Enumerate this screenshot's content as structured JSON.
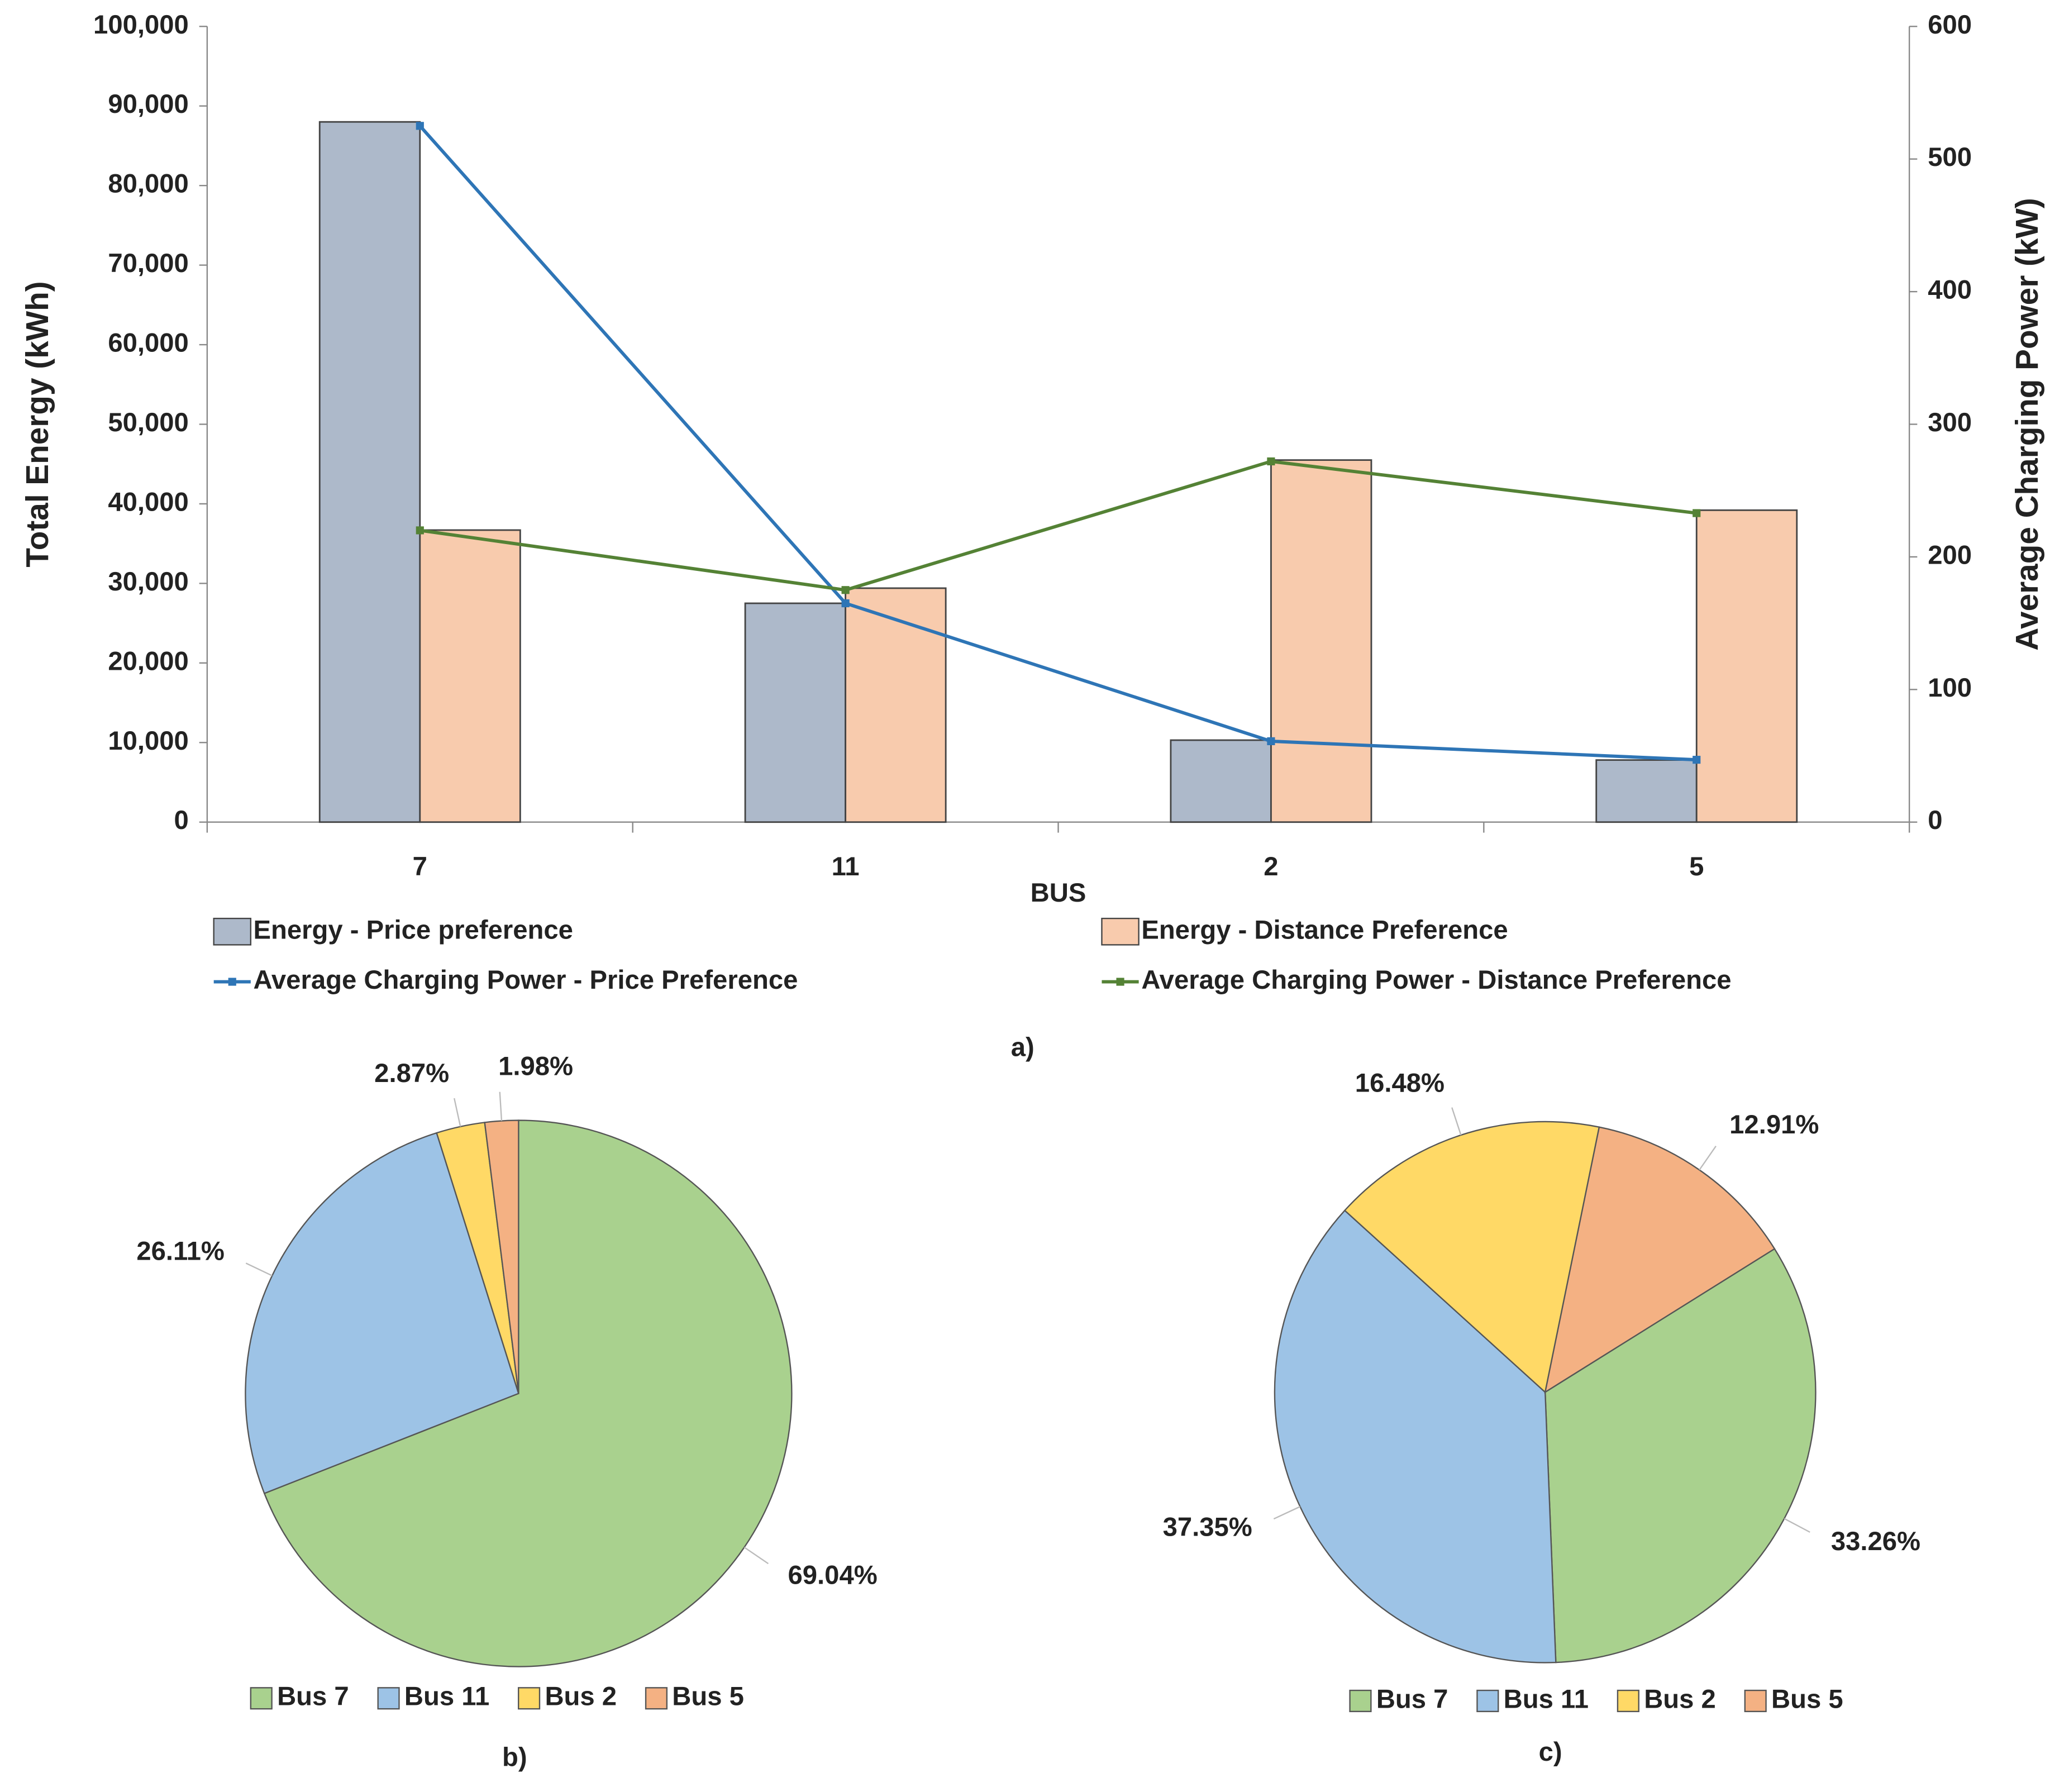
{
  "chart_data": [
    {
      "type": "bar",
      "caption": "a)",
      "xlabel": "BUS",
      "ylabel": "Total Energy (kWh)",
      "y2label": "Average Charging Power (kW)",
      "categories": [
        "7",
        "11",
        "2",
        "5"
      ],
      "series": [
        {
          "name": "Energy - Price preference",
          "color": "#adb9ca",
          "values": [
            88000,
            27500,
            10300,
            7800
          ]
        },
        {
          "name": "Energy - Distance Preference",
          "color": "#f8cbad",
          "values": [
            36700,
            29400,
            45500,
            39200
          ]
        },
        {
          "name": "Average Charging Power - Price Preference",
          "color": "#2e75b6",
          "axis": "y2",
          "values": [
            525,
            165,
            61,
            47
          ]
        },
        {
          "name": "Average Charging Power - Distance Preference",
          "color": "#548235",
          "axis": "y2",
          "values": [
            220,
            175,
            272,
            233
          ]
        }
      ],
      "ylim": [
        0,
        100000
      ],
      "yticks": [
        0,
        {
          "value": 10000,
          "label": "10,000"
        },
        {
          "value": 20000,
          "label": "20,000"
        },
        {
          "value": 30000,
          "label": "30,000"
        },
        {
          "value": 40000,
          "label": "40,000"
        },
        {
          "value": 50000,
          "label": "50,000"
        },
        {
          "value": 60000,
          "label": "60,000"
        },
        {
          "value": 70000,
          "label": "70,000"
        },
        {
          "value": 80000,
          "label": "80,000"
        },
        {
          "value": 90000,
          "label": "90,000"
        },
        {
          "value": 100000,
          "label": "100,000"
        }
      ],
      "y2lim": [
        0,
        600
      ],
      "y2ticks": [
        0,
        100,
        200,
        300,
        400,
        500,
        600
      ]
    },
    {
      "type": "pie",
      "caption": "b)",
      "categories": [
        "Bus 7",
        "Bus 11",
        "Bus 2",
        "Bus 5"
      ],
      "colors": [
        "#a9d18e",
        "#9dc3e6",
        "#ffd966",
        "#f4b183"
      ],
      "values": [
        69.04,
        26.11,
        2.87,
        1.98
      ],
      "value_labels": [
        "69.04%",
        "26.11%",
        "2.87%",
        "1.98%"
      ]
    },
    {
      "type": "pie",
      "caption": "c)",
      "categories": [
        "Bus 7",
        "Bus 11",
        "Bus 2",
        "Bus 5"
      ],
      "colors": [
        "#a9d18e",
        "#9dc3e6",
        "#ffd966",
        "#f4b183"
      ],
      "values": [
        33.26,
        37.35,
        16.48,
        12.91
      ],
      "value_labels": [
        "33.26%",
        "37.35%",
        "16.48%",
        "12.91%"
      ]
    }
  ]
}
